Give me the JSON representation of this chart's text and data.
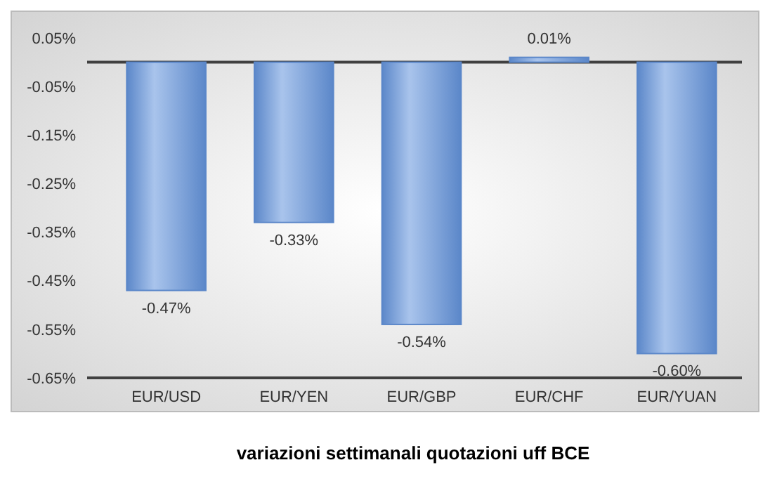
{
  "chart_data": {
    "type": "bar",
    "title": "variazioni settimanali quotazioni uff BCE",
    "categories": [
      "EUR/USD",
      "EUR/YEN",
      "EUR/GBP",
      "EUR/CHF",
      "EUR/YUAN"
    ],
    "values": [
      -0.47,
      -0.33,
      -0.54,
      0.01,
      -0.6
    ],
    "color": "#5b87c9",
    "ylim": [
      -0.65,
      0.05
    ],
    "yticks": [
      {
        "value": 0.05,
        "label": "0.05%"
      },
      {
        "value": -0.05,
        "label": "-0.05%"
      },
      {
        "value": -0.15,
        "label": "-0.15%"
      },
      {
        "value": -0.25,
        "label": "-0.25%"
      },
      {
        "value": -0.35,
        "label": "-0.35%"
      },
      {
        "value": -0.45,
        "label": "-0.45%"
      },
      {
        "value": -0.55,
        "label": "-0.55%"
      },
      {
        "value": -0.65,
        "label": "-0.65%"
      }
    ],
    "ref_lines": [
      {
        "axis": "y",
        "value": 0,
        "color": "#404040"
      }
    ],
    "value_labels": [
      "-0.47%",
      "-0.33%",
      "-0.54%",
      "0.01%",
      "-0.60%"
    ],
    "grid": false
  }
}
